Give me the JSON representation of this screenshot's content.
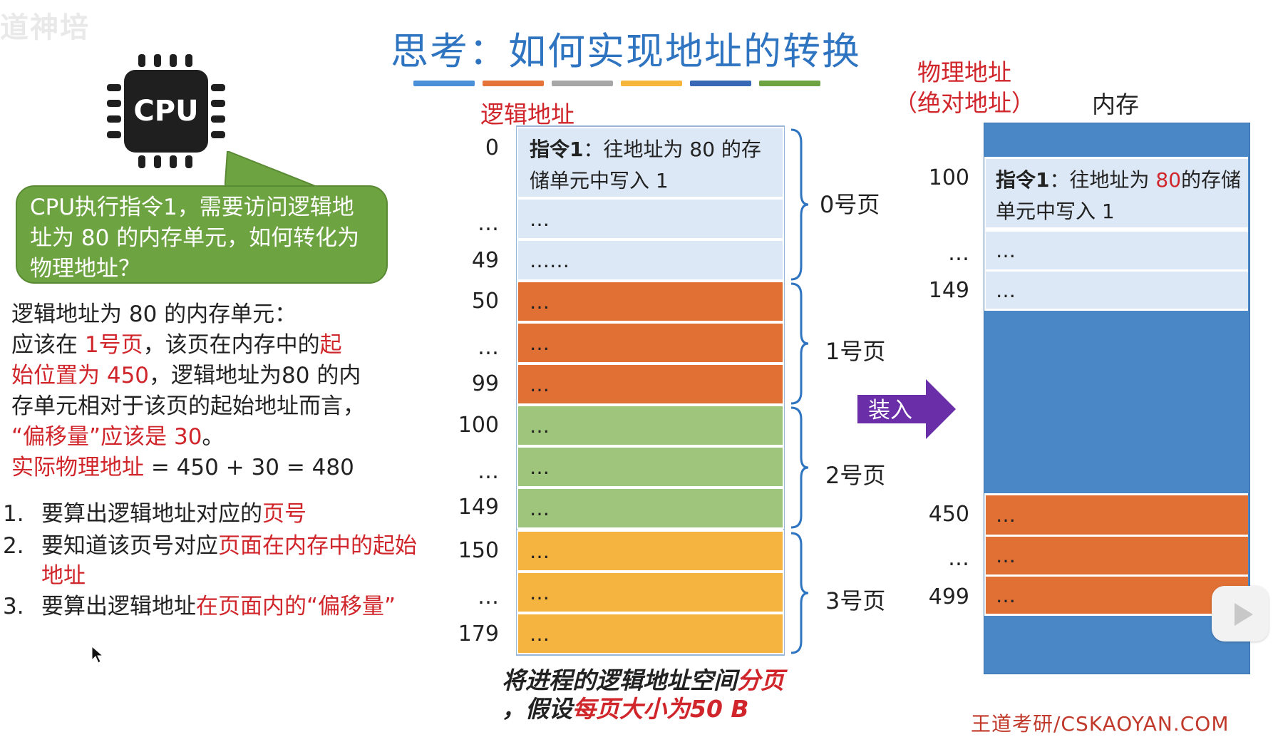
{
  "watermark": "道神培",
  "title": "思考：如何实现地址的转换",
  "title_bar_colors": [
    "#4a90d9",
    "#e47437",
    "#a6a6a6",
    "#f5b63a",
    "#3867b6",
    "#6ea342"
  ],
  "cpu": {
    "label": "CPU",
    "icon": "cpu-chip-icon"
  },
  "bubble": {
    "text": "CPU执行指令1，需要访问逻辑地址为 80 的内存单元，如何转化为物理地址？"
  },
  "explanation": {
    "line1": "逻辑地址为 80 的内存单元：",
    "line2_a": "应该在 ",
    "line2_b": "1号页",
    "line2_c": "，该页在内存中的",
    "line2_d": "起",
    "line3_a": "始位置为 450",
    "line3_b": "，逻辑地址为80 的内",
    "line4": "存单元相对于该页的起始地址而言，",
    "line5_a": "“偏移量”应该是 30",
    "line5_b": "。",
    "line6_a": "实际物理地址",
    "line6_b": " = 450 + 30 = 480"
  },
  "steps": [
    {
      "num": "1.",
      "a": "要算出逻辑地址对应的",
      "b": "页号",
      "c": ""
    },
    {
      "num": "2.",
      "a": "要知道该页号对应",
      "b": "页面在内存中的起始地址",
      "c": ""
    },
    {
      "num": "3.",
      "a": "要算出逻辑地址",
      "b": "在页面内的“偏移量”",
      "c": ""
    }
  ],
  "logical": {
    "header": "逻辑地址",
    "rows": [
      {
        "addr": "0",
        "bold": "指令1",
        "text": "：往地址为 80 的存储单元中写入 1",
        "color": "#dce8f5"
      },
      {
        "addr": "…",
        "text": "…",
        "color": "#dce8f5"
      },
      {
        "addr": "49",
        "text": "……",
        "color": "#dce8f5"
      },
      {
        "addr": "50",
        "text": "…",
        "color": "#e07033"
      },
      {
        "addr": "…",
        "text": "…",
        "color": "#e07033"
      },
      {
        "addr": "99",
        "text": "…",
        "color": "#e07033"
      },
      {
        "addr": "100",
        "text": "…",
        "color": "#9fc47b"
      },
      {
        "addr": "…",
        "text": "…",
        "color": "#9fc47b"
      },
      {
        "addr": "149",
        "text": "…",
        "color": "#9fc47b"
      },
      {
        "addr": "150",
        "text": "…",
        "color": "#f5b440"
      },
      {
        "addr": "…",
        "text": "…",
        "color": "#f5b440"
      },
      {
        "addr": "179",
        "text": "…",
        "color": "#f5b440"
      }
    ],
    "pages": [
      "0号页",
      "1号页",
      "2号页",
      "3号页"
    ]
  },
  "caption": {
    "a": "将进程的逻辑地址空间",
    "b": "分页",
    "c": "，假设",
    "d": "每页大小为",
    "e": "50 B"
  },
  "arrow_label": "装入",
  "physical": {
    "header_line1": "物理地址",
    "header_line2": "（绝对地址）",
    "mem_label": "内存",
    "rows": [
      {
        "addr": "100",
        "bold": "指令1",
        "text": "：往地址为 ",
        "red": "80",
        "text2": "的存储单元中写入 1",
        "color": "#dce8f5"
      },
      {
        "addr": "…",
        "text": "…",
        "color": "#dce8f5"
      },
      {
        "addr": "149",
        "text": "…",
        "color": "#dce8f5"
      },
      {
        "addr": "450",
        "text": "…",
        "color": "#e07033"
      },
      {
        "addr": "…",
        "text": "…",
        "color": "#e07033"
      },
      {
        "addr": "499",
        "text": "…",
        "color": "#e07033"
      }
    ]
  },
  "footer": "王道考研/CSKAOYAN.COM"
}
